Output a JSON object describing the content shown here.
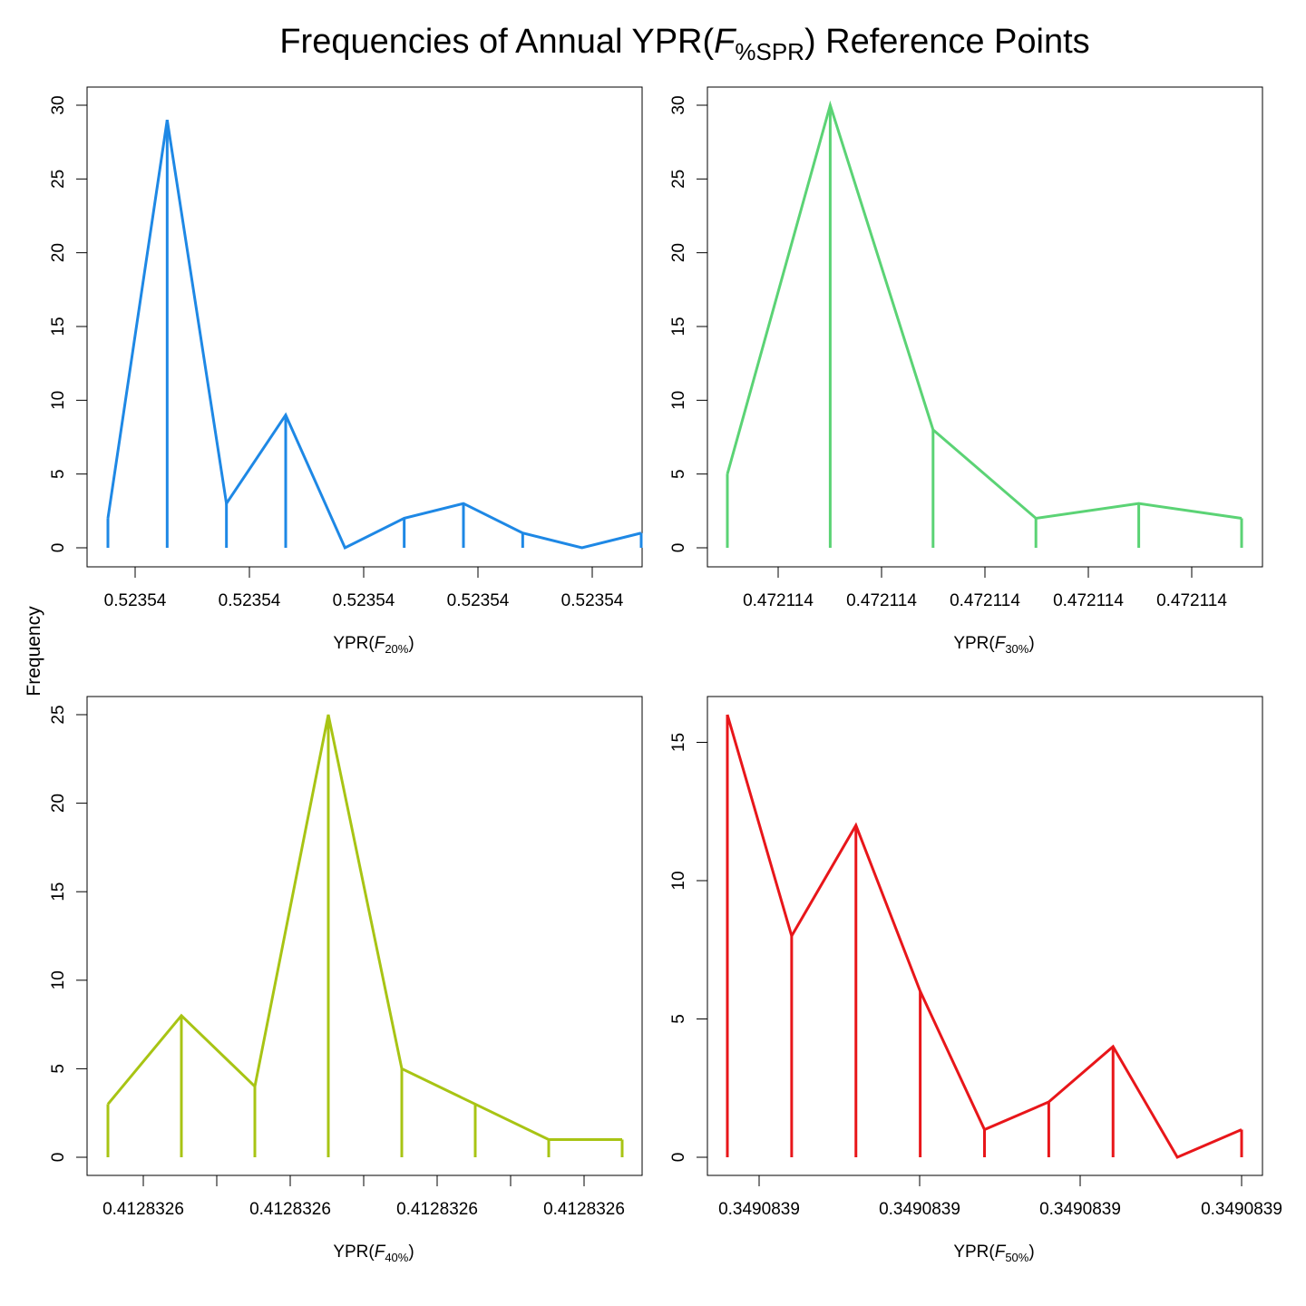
{
  "title": {
    "pre": "Frequencies of Annual YPR(",
    "italic": "F",
    "sub": "%SPR",
    "post": ") Reference Points"
  },
  "ylabel": "Frequency",
  "chart_data": [
    {
      "type": "line",
      "color": "#1E88E5",
      "xlabel": {
        "pre": "YPR(",
        "italic": "F",
        "sub": "20%",
        "post": ")"
      },
      "y_ticks": [
        0,
        5,
        10,
        15,
        20,
        25,
        30
      ],
      "ylim": [
        0,
        30
      ],
      "x_ticks": [
        {
          "label": "0.52354"
        },
        {
          "label": "0.52354"
        },
        {
          "label": "0.52354"
        },
        {
          "label": "0.52354"
        },
        {
          "label": "0.52354"
        }
      ],
      "values": [
        2,
        29,
        3,
        9,
        0,
        2,
        3,
        1,
        0,
        1
      ]
    },
    {
      "type": "line",
      "color": "#5BD375",
      "xlabel": {
        "pre": "YPR(",
        "italic": "F",
        "sub": "30%",
        "post": ")"
      },
      "y_ticks": [
        0,
        5,
        10,
        15,
        20,
        25,
        30
      ],
      "ylim": [
        0,
        30
      ],
      "x_ticks": [
        {
          "label": "0.472114"
        },
        {
          "label": "0.472114"
        },
        {
          "label": "0.472114"
        },
        {
          "label": "0.472114"
        },
        {
          "label": "0.472114"
        }
      ],
      "values": [
        5,
        30,
        8,
        2,
        3,
        2
      ]
    },
    {
      "type": "line",
      "color": "#A8C414",
      "xlabel": {
        "pre": "YPR(",
        "italic": "F",
        "sub": "40%",
        "post": ")"
      },
      "y_ticks": [
        0,
        5,
        10,
        15,
        20,
        25
      ],
      "ylim": [
        0,
        25
      ],
      "x_ticks": [
        {
          "label": "0.4128326"
        },
        {
          "label": ""
        },
        {
          "label": "0.4128326"
        },
        {
          "label": ""
        },
        {
          "label": "0.4128326"
        },
        {
          "label": ""
        },
        {
          "label": "0.4128326"
        }
      ],
      "values": [
        3,
        8,
        4,
        25,
        5,
        3,
        1,
        1
      ]
    },
    {
      "type": "line",
      "color": "#E8161A",
      "xlabel": {
        "pre": "YPR(",
        "italic": "F",
        "sub": "50%",
        "post": ")"
      },
      "y_ticks": [
        0,
        5,
        10,
        15
      ],
      "ylim": [
        0,
        16
      ],
      "x_ticks": [
        {
          "label": "0.3490839"
        },
        {
          "label": "0.3490839"
        },
        {
          "label": "0.3490839"
        },
        {
          "label": "0.3490839"
        }
      ],
      "values": [
        16,
        8,
        12,
        6,
        1,
        2,
        4,
        0,
        1
      ]
    }
  ]
}
